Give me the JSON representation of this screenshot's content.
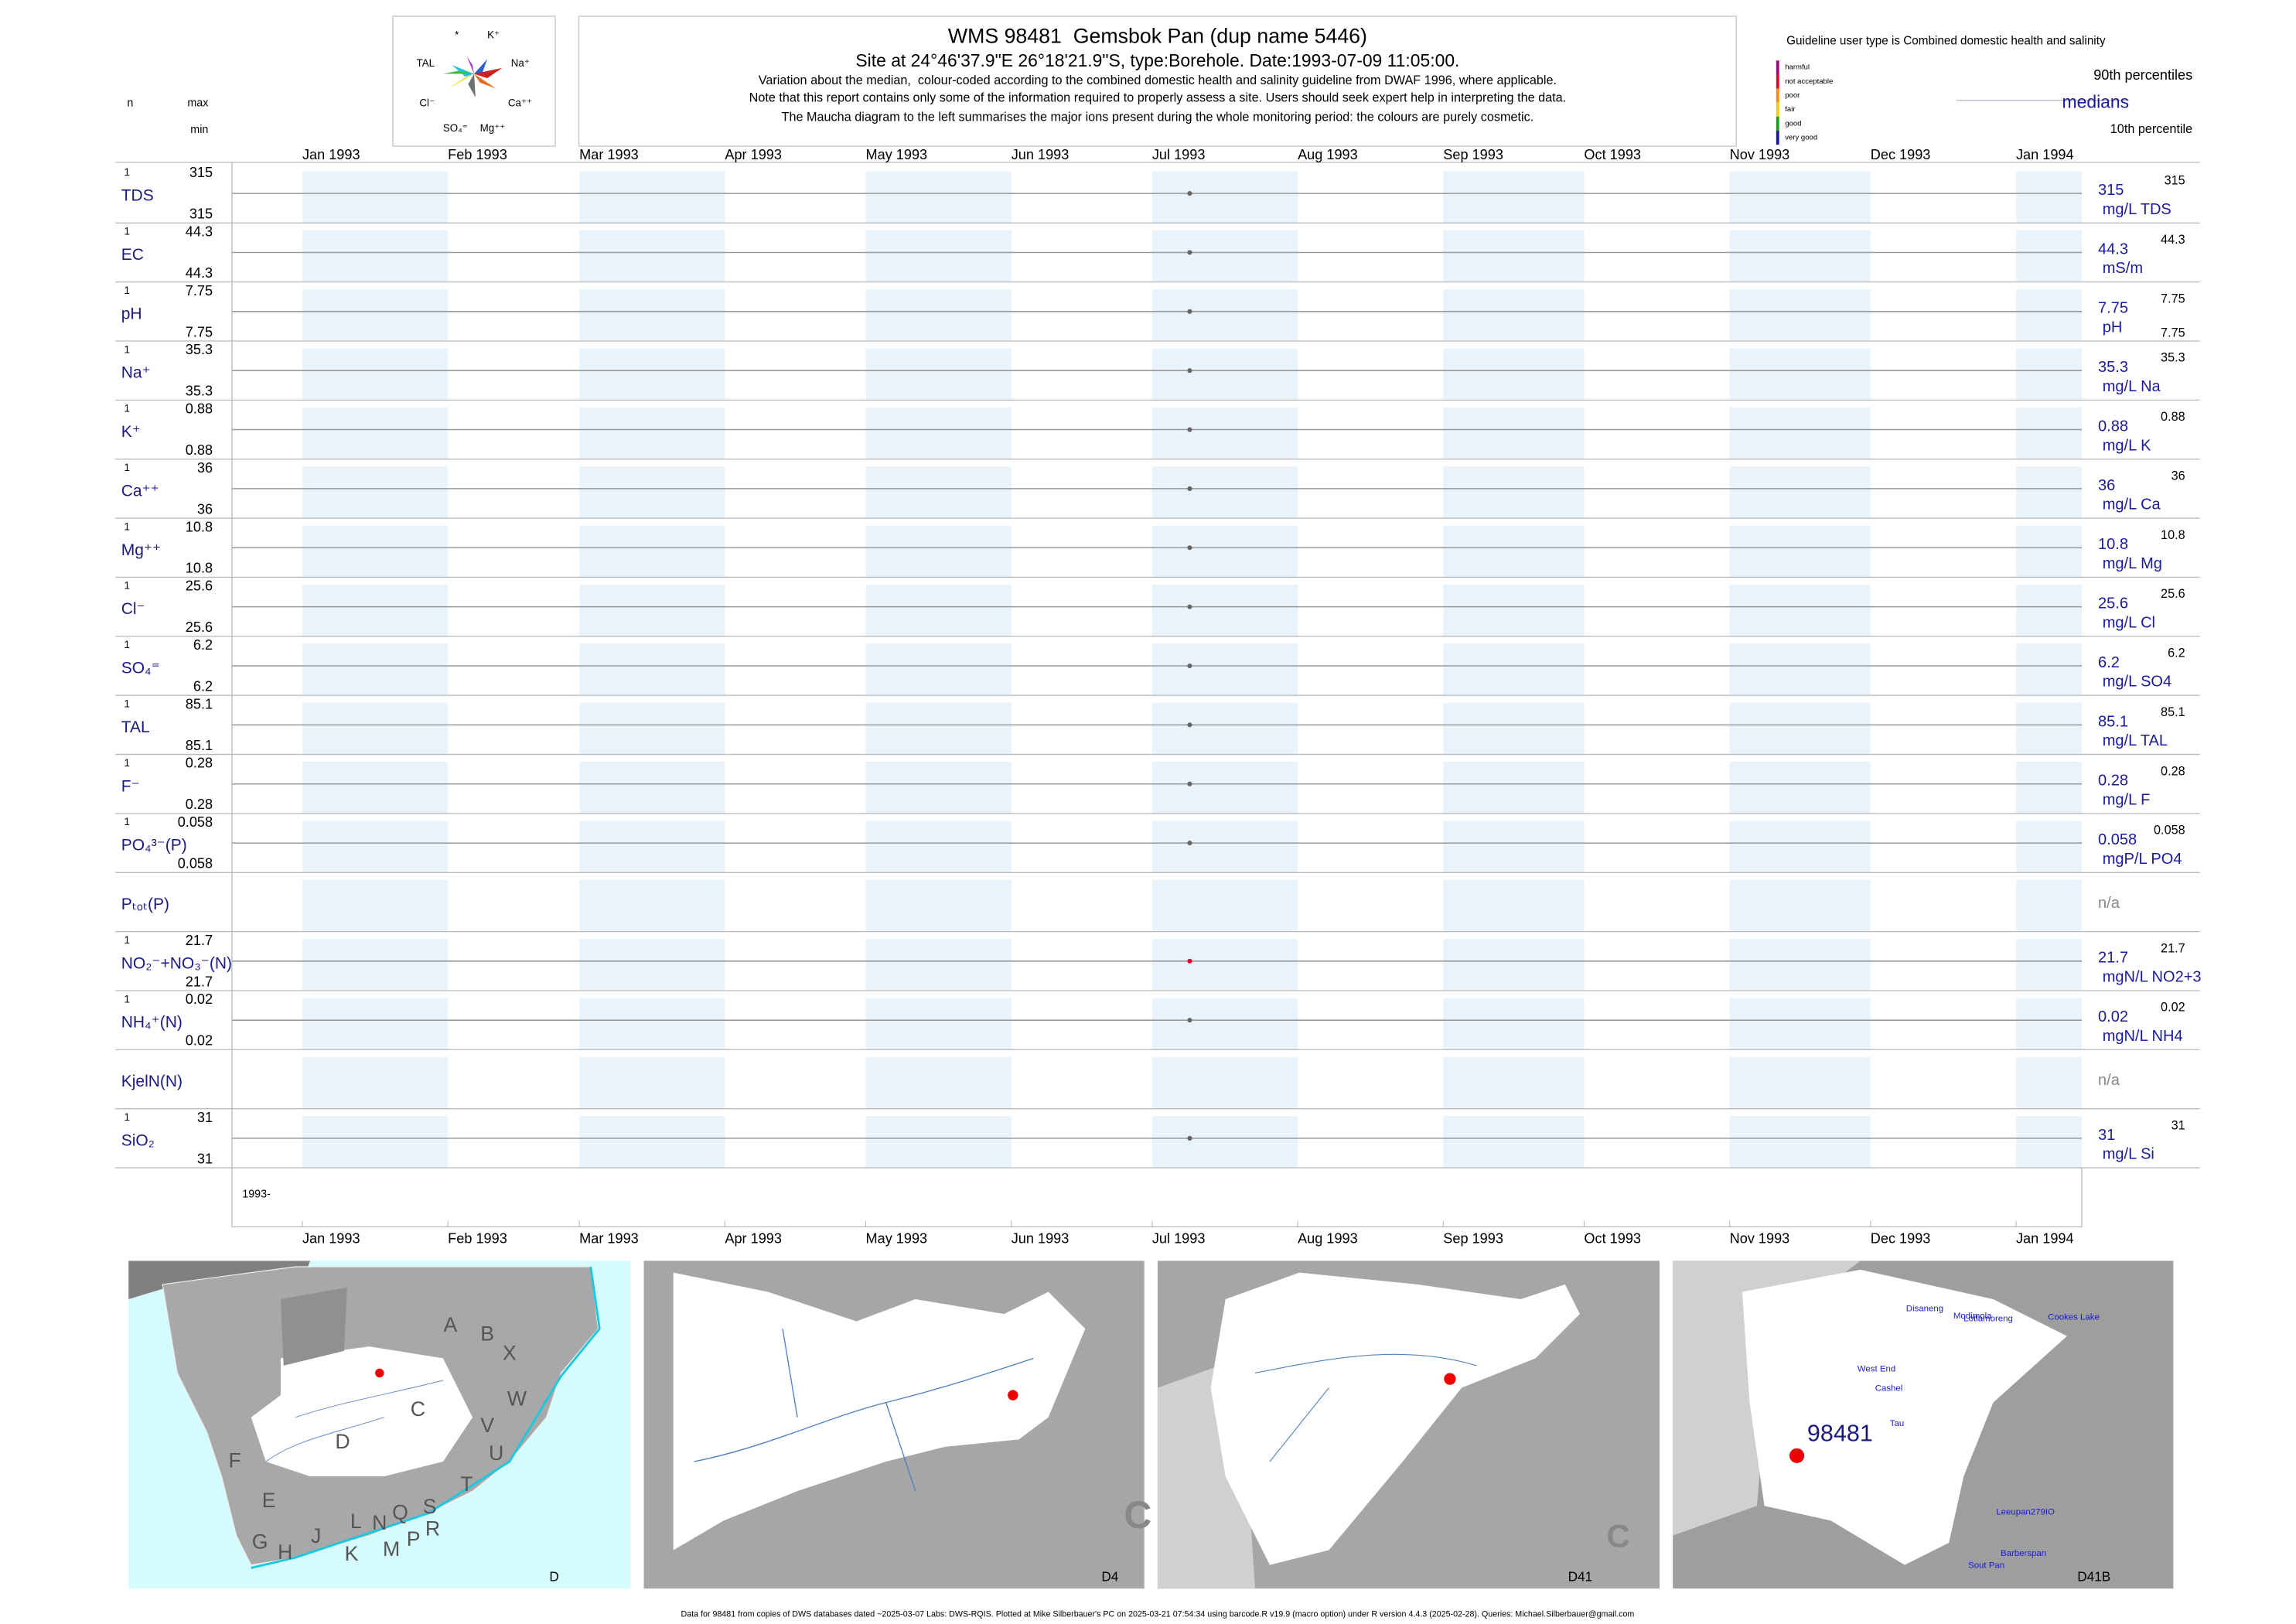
{
  "header": {
    "title": "WMS 98481  Gemsbok Pan (dup name 5446)",
    "subtitle": "Site at 24°46'37.9\"E 26°18'21.9\"S, type:Borehole. Date:1993-07-09 11:05:00.",
    "notes": [
      "Variation about the median,  colour-coded according to the combined domestic health and salinity guideline from DWAF 1996, where applicable.",
      "Note that this report contains only some of the information required to properly assess a site. Users should seek expert help in interpreting the data.",
      "The Maucha diagram to the left summarises the major ions present during the whole monitoring period: the colours are purely cosmetic."
    ]
  },
  "maucha": {
    "labels": [
      "*",
      "K⁺",
      "TAL",
      "Na⁺",
      "Cl⁻",
      "Ca⁺⁺",
      "SO₄⁼",
      "Mg⁺⁺"
    ]
  },
  "column_heads": {
    "n": "n",
    "max": "max",
    "min": "min"
  },
  "legend": {
    "guideline": "Guideline user type is Combined domestic health and salinity",
    "classes": [
      {
        "name": "harmful",
        "color": "#a0007a"
      },
      {
        "name": "not acceptable",
        "color": "#e8002a"
      },
      {
        "name": "poor",
        "color": "#ff8c00"
      },
      {
        "name": "fair",
        "color": "#f0d000"
      },
      {
        "name": "good",
        "color": "#1aa01a"
      },
      {
        "name": "very good",
        "color": "#1a1aa0"
      }
    ],
    "p90": "90th percentiles",
    "medians": "medians",
    "p10": "10th percentile"
  },
  "plot": {
    "xlim": [
      "1992-12-17",
      "1994-01-15"
    ],
    "months": [
      {
        "value": "1993-01-01",
        "label": "Jan 1993"
      },
      {
        "value": "1993-02-01",
        "label": "Feb 1993"
      },
      {
        "value": "1993-03-01",
        "label": "Mar 1993"
      },
      {
        "value": "1993-04-01",
        "label": "Apr 1993"
      },
      {
        "value": "1993-05-01",
        "label": "May 1993"
      },
      {
        "value": "1993-06-01",
        "label": "Jun 1993"
      },
      {
        "value": "1993-07-01",
        "label": "Jul 1993"
      },
      {
        "value": "1993-08-01",
        "label": "Aug 1993"
      },
      {
        "value": "1993-09-01",
        "label": "Sep 1993"
      },
      {
        "value": "1993-10-01",
        "label": "Oct 1993"
      },
      {
        "value": "1993-11-01",
        "label": "Nov 1993"
      },
      {
        "value": "1993-12-01",
        "label": "Dec 1993"
      },
      {
        "value": "1994-01-01",
        "label": "Jan 1994"
      }
    ],
    "sample_date": "1993-07-09",
    "year_label": "1993-",
    "rows": [
      {
        "label": "TDS",
        "n": 1,
        "max": 315,
        "min": 315,
        "median": 315,
        "p90": 315,
        "unit": "mg/L TDS",
        "color": "#666666"
      },
      {
        "label": "EC",
        "n": 1,
        "max": 44.3,
        "min": 44.3,
        "median": 44.3,
        "p90": 44.3,
        "unit": "mS/m",
        "color": "#666666"
      },
      {
        "label": "pH",
        "n": 1,
        "max": 7.75,
        "min": 7.75,
        "median": 7.75,
        "p90": 7.75,
        "p10": 7.75,
        "unit": "pH",
        "color": "#666666"
      },
      {
        "label": "Na⁺",
        "n": 1,
        "max": 35.3,
        "min": 35.3,
        "median": 35.3,
        "p90": 35.3,
        "unit": "mg/L Na",
        "color": "#666666"
      },
      {
        "label": "K⁺",
        "n": 1,
        "max": 0.88,
        "min": 0.88,
        "median": 0.88,
        "p90": 0.88,
        "unit": "mg/L K",
        "color": "#666666"
      },
      {
        "label": "Ca⁺⁺",
        "n": 1,
        "max": 36,
        "min": 36,
        "median": 36,
        "p90": 36,
        "unit": "mg/L Ca",
        "color": "#666666"
      },
      {
        "label": "Mg⁺⁺",
        "n": 1,
        "max": 10.8,
        "min": 10.8,
        "median": 10.8,
        "p90": 10.8,
        "unit": "mg/L Mg",
        "color": "#666666"
      },
      {
        "label": "Cl⁻",
        "n": 1,
        "max": 25.6,
        "min": 25.6,
        "median": 25.6,
        "p90": 25.6,
        "unit": "mg/L Cl",
        "color": "#666666"
      },
      {
        "label": "SO₄⁼",
        "n": 1,
        "max": 6.2,
        "min": 6.2,
        "median": 6.2,
        "p90": 6.2,
        "unit": "mg/L SO4",
        "color": "#666666"
      },
      {
        "label": "TAL",
        "n": 1,
        "max": 85.1,
        "min": 85.1,
        "median": 85.1,
        "p90": 85.1,
        "unit": "mg/L TAL",
        "color": "#666666"
      },
      {
        "label": "F⁻",
        "n": 1,
        "max": 0.28,
        "min": 0.28,
        "median": 0.28,
        "p90": 0.28,
        "unit": "mg/L F",
        "color": "#666666"
      },
      {
        "label": "PO₄³⁻(P)",
        "n": 1,
        "max": 0.058,
        "min": 0.058,
        "median": 0.058,
        "p90": 0.058,
        "unit": "mgP/L PO4",
        "color": "#666666"
      },
      {
        "label": "Pₜₒₜ(P)",
        "note": "n/a"
      },
      {
        "label": "NO₂⁻+NO₃⁻(N)",
        "n": 1,
        "max": 21.7,
        "min": 21.7,
        "median": 21.7,
        "p90": 21.7,
        "unit": "mgN/L NO2+3",
        "color": "#e8002a"
      },
      {
        "label": "NH₄⁺(N)",
        "n": 1,
        "max": 0.02,
        "min": 0.02,
        "median": 0.02,
        "p90": 0.02,
        "unit": "mgN/L NH4",
        "color": "#666666"
      },
      {
        "label": "KjelN(N)",
        "note": "n/a"
      },
      {
        "label": "SiO₂",
        "n": 1,
        "max": 31,
        "min": 31,
        "median": 31,
        "p90": 31,
        "unit": "mg/L Si",
        "color": "#666666"
      }
    ]
  },
  "maps": [
    {
      "label": "D",
      "regions": [
        "A",
        "B",
        "X",
        "W",
        "C",
        "V",
        "U",
        "D",
        "F",
        "E",
        "T",
        "G",
        "H",
        "J",
        "K",
        "L",
        "N",
        "Q",
        "S",
        "M",
        "P",
        "R"
      ]
    },
    {
      "label": "D4",
      "regions": [
        "C"
      ]
    },
    {
      "label": "D41",
      "regions": [
        "C"
      ]
    },
    {
      "label": "D41B",
      "site": "98481",
      "places": [
        "Disaneng",
        "Modimola",
        "Lotlamoreng",
        "Cookes Lake",
        "West End",
        "Cashel",
        "Tau",
        "Leeupan279IO",
        "Barberspan",
        "Sout Pan"
      ]
    }
  ],
  "footer": "Data for 98481 from copies of DWS databases dated ~2025-03-07 Labs: DWS-RQIS. Plotted at Mike Silberbauer's PC on 2025-03-21 07:54:34 using barcode.R v19.9 (macro option) under R version 4.4.3 (2025-02-28). Queries: Michael.Silberbauer@gmail.com"
}
